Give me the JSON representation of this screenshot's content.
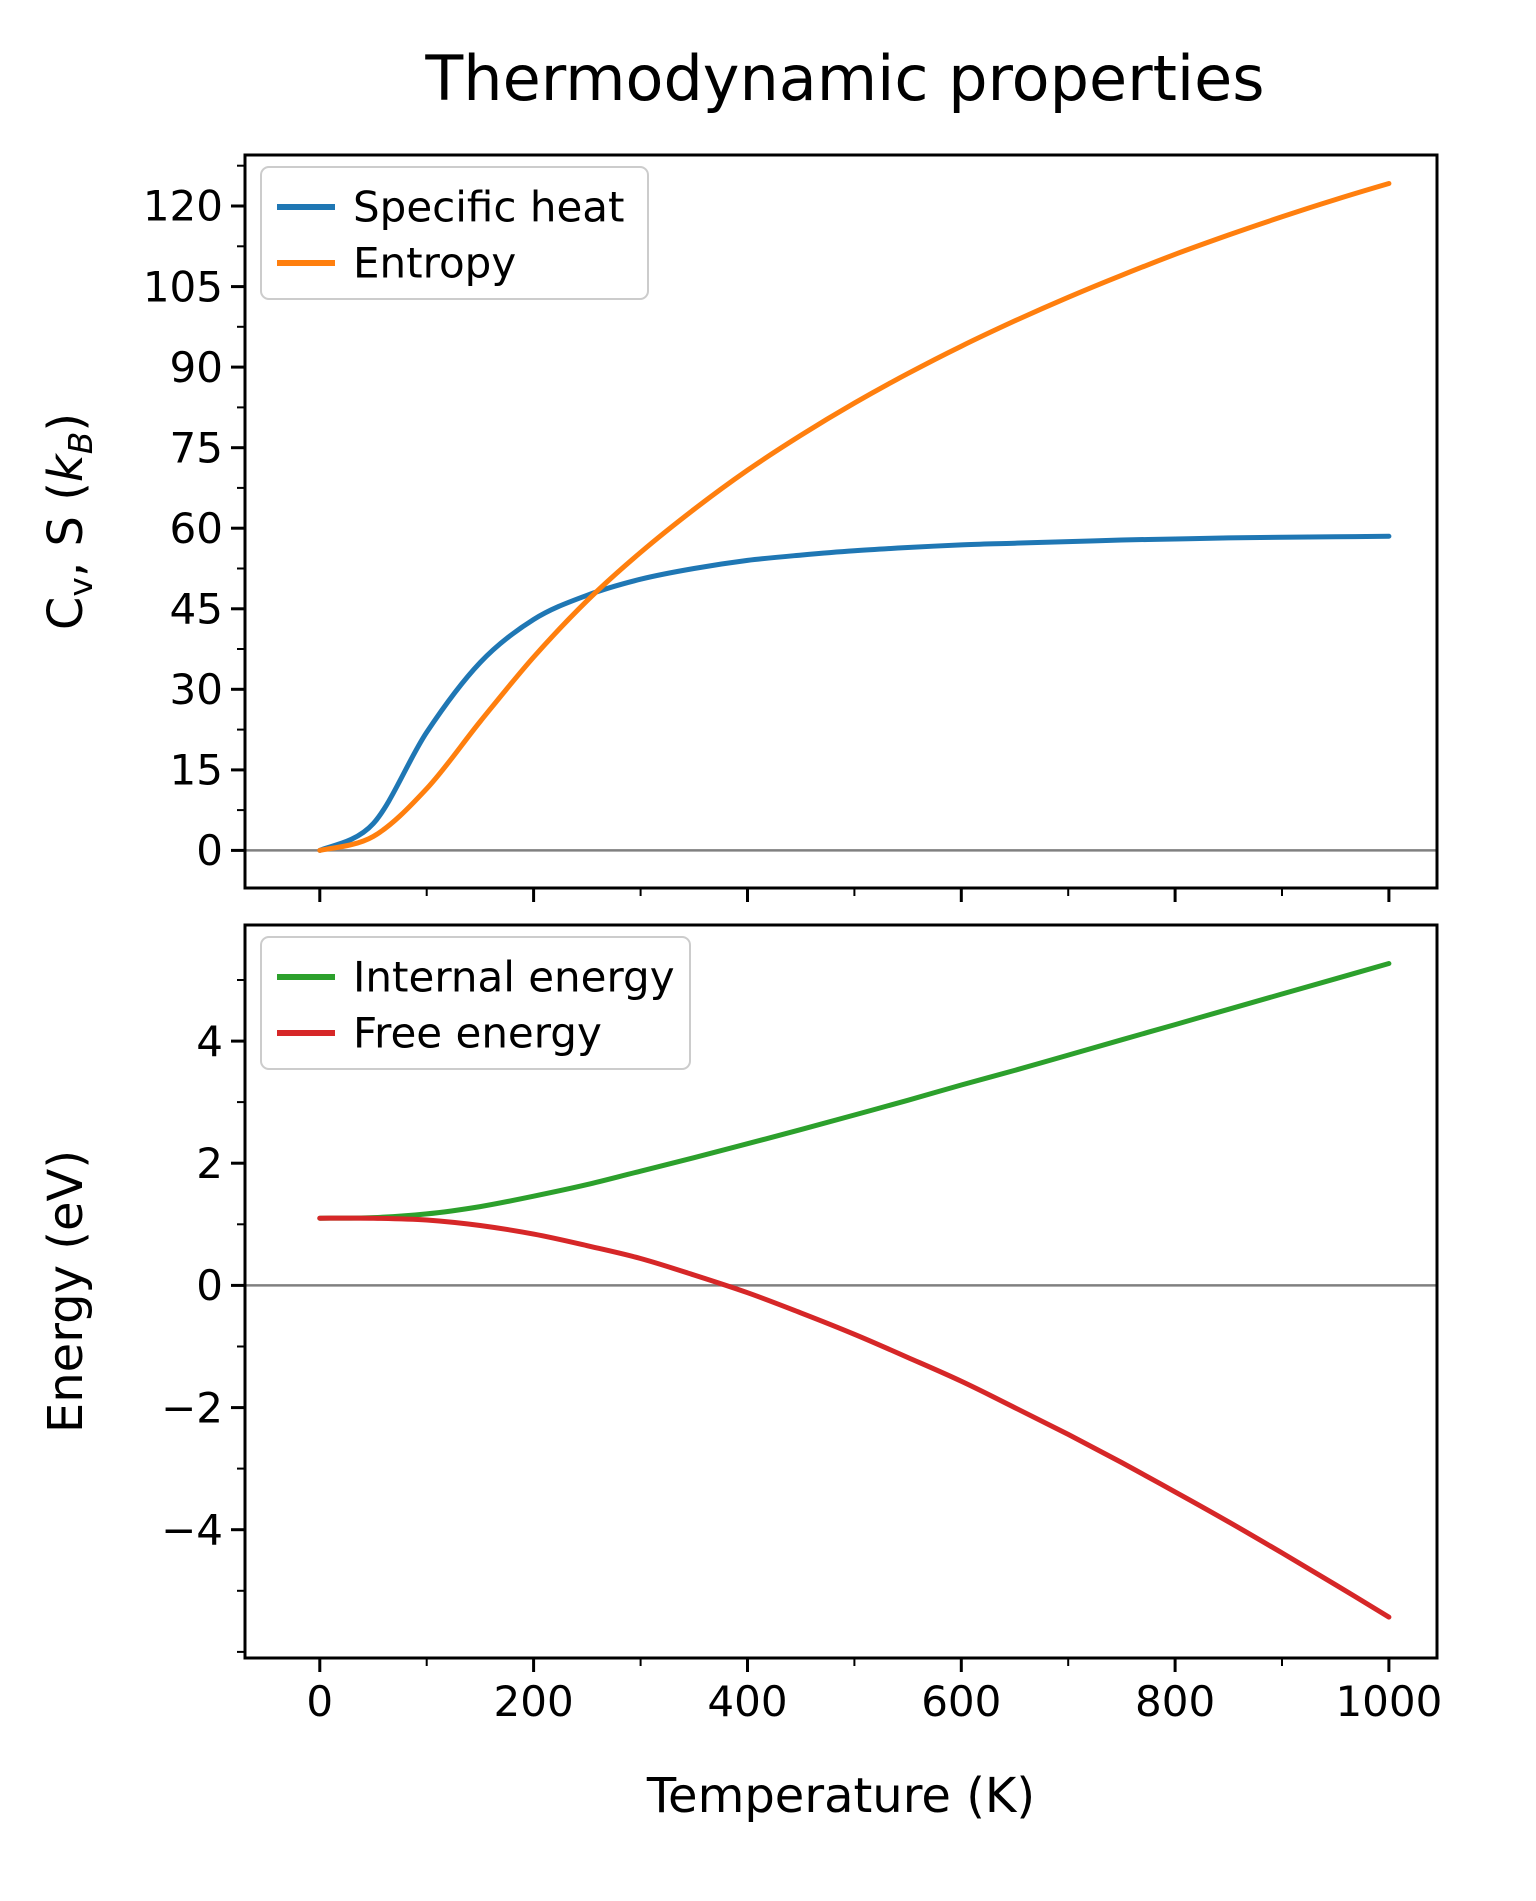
{
  "figure": {
    "background": "#ffffff",
    "text_color": "#000000",
    "zero_line_color": "#808080",
    "spine_color": "#000000"
  },
  "chart_data": [
    {
      "type": "line",
      "panel": "top",
      "title": "Thermodynamic properties",
      "ylabel": "Cv, S (kB)",
      "ylabel_parts": [
        {
          "t": "C"
        },
        {
          "t": "v",
          "sub": true
        },
        {
          "t": ", S ("
        },
        {
          "t": "k",
          "italic": true
        },
        {
          "t": "B",
          "sub": true,
          "italic": true
        },
        {
          "t": ")"
        }
      ],
      "xlim": [
        -70,
        1045
      ],
      "ylim": [
        -7,
        129.5
      ],
      "xticks": [
        0,
        200,
        400,
        600,
        800,
        1000
      ],
      "yticks": [
        0,
        15,
        30,
        45,
        60,
        75,
        90,
        105,
        120
      ],
      "x_tick_labels_visible": false,
      "grid": false,
      "zero_line": true,
      "legend_position": "upper-left",
      "x": [
        0,
        50,
        100,
        150,
        200,
        250,
        300,
        350,
        400,
        450,
        500,
        550,
        600,
        650,
        700,
        750,
        800,
        850,
        900,
        950,
        1000
      ],
      "series": [
        {
          "name": "Specific heat",
          "color": "#1f77b4",
          "values": [
            0,
            5,
            22,
            35,
            43,
            47.5,
            50.5,
            52.5,
            54,
            55,
            55.8,
            56.4,
            56.9,
            57.2,
            57.5,
            57.8,
            58,
            58.2,
            58.3,
            58.4,
            58.5
          ]
        },
        {
          "name": "Entropy",
          "color": "#ff7f0e",
          "values": [
            0,
            2.6,
            11.5,
            24,
            36,
            46.5,
            55.5,
            63.5,
            70.8,
            77.3,
            83.3,
            88.8,
            93.9,
            98.6,
            103,
            107.1,
            111,
            114.6,
            118,
            121.2,
            124.2
          ]
        }
      ]
    },
    {
      "type": "line",
      "panel": "bottom",
      "xlabel": "Temperature (K)",
      "ylabel": "Energy (eV)",
      "xlim": [
        -70,
        1045
      ],
      "ylim": [
        -6.1,
        5.9
      ],
      "xticks": [
        0,
        200,
        400,
        600,
        800,
        1000
      ],
      "yticks": [
        -4,
        -2,
        0,
        2,
        4
      ],
      "x_tick_labels_visible": true,
      "grid": false,
      "zero_line": true,
      "legend_position": "upper-left",
      "x": [
        0,
        50,
        100,
        150,
        200,
        250,
        300,
        350,
        400,
        450,
        500,
        550,
        600,
        650,
        700,
        750,
        800,
        850,
        900,
        950,
        1000
      ],
      "series": [
        {
          "name": "Internal energy",
          "color": "#2ca02c",
          "values": [
            1.1,
            1.11,
            1.17,
            1.29,
            1.46,
            1.65,
            1.87,
            2.09,
            2.32,
            2.55,
            2.79,
            3.03,
            3.28,
            3.52,
            3.77,
            4.02,
            4.27,
            4.52,
            4.77,
            5.02,
            5.27
          ]
        },
        {
          "name": "Free energy",
          "color": "#d62728",
          "values": [
            1.1,
            1.1,
            1.07,
            0.98,
            0.84,
            0.65,
            0.44,
            0.17,
            -0.12,
            -0.45,
            -0.8,
            -1.18,
            -1.57,
            -2.0,
            -2.44,
            -2.9,
            -3.38,
            -3.87,
            -4.38,
            -4.9,
            -5.43
          ]
        }
      ]
    }
  ]
}
